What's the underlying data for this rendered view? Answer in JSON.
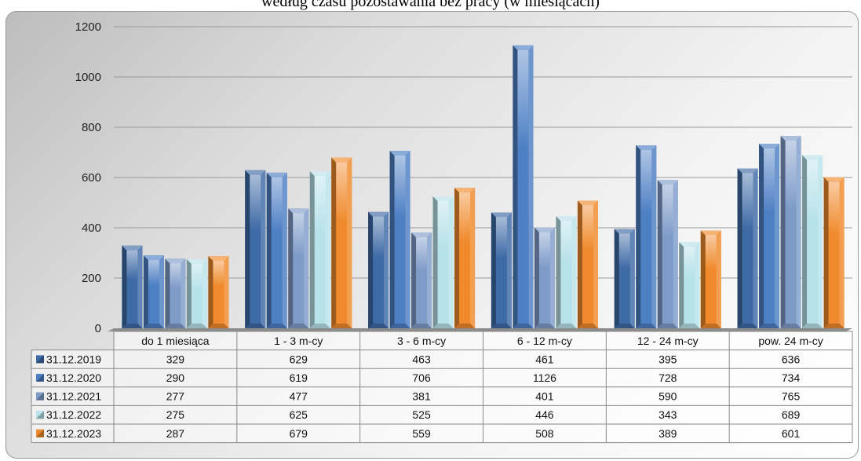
{
  "title": "według czasu pozostawania bez pracy (w miesiącach)",
  "chart_data": {
    "type": "bar",
    "title": "według czasu pozostawania bez pracy (w miesiącach)",
    "categories": [
      "do 1 miesiąca",
      "1 - 3 m-cy",
      "3 - 6 m-cy",
      "6 - 12 m-cy",
      "12 - 24 m-cy",
      "pow. 24 m-cy"
    ],
    "series": [
      {
        "name": "31.12.2019",
        "color": "#3e6aa6",
        "values": [
          329,
          629,
          463,
          461,
          395,
          636
        ]
      },
      {
        "name": "31.12.2020",
        "color": "#4d7fc4",
        "values": [
          290,
          619,
          706,
          1126,
          728,
          734
        ]
      },
      {
        "name": "31.12.2021",
        "color": "#7f9cc9",
        "values": [
          277,
          477,
          381,
          401,
          590,
          765
        ]
      },
      {
        "name": "31.12.2022",
        "color": "#b8e2ea",
        "values": [
          275,
          625,
          525,
          446,
          343,
          689
        ]
      },
      {
        "name": "31.12.2023",
        "color": "#f08a2c",
        "values": [
          287,
          679,
          559,
          508,
          389,
          601
        ]
      }
    ],
    "yticks": [
      0,
      200,
      400,
      600,
      800,
      1000,
      1200
    ],
    "ylim": [
      0,
      1200
    ],
    "grid": true,
    "legend": "data-table"
  }
}
